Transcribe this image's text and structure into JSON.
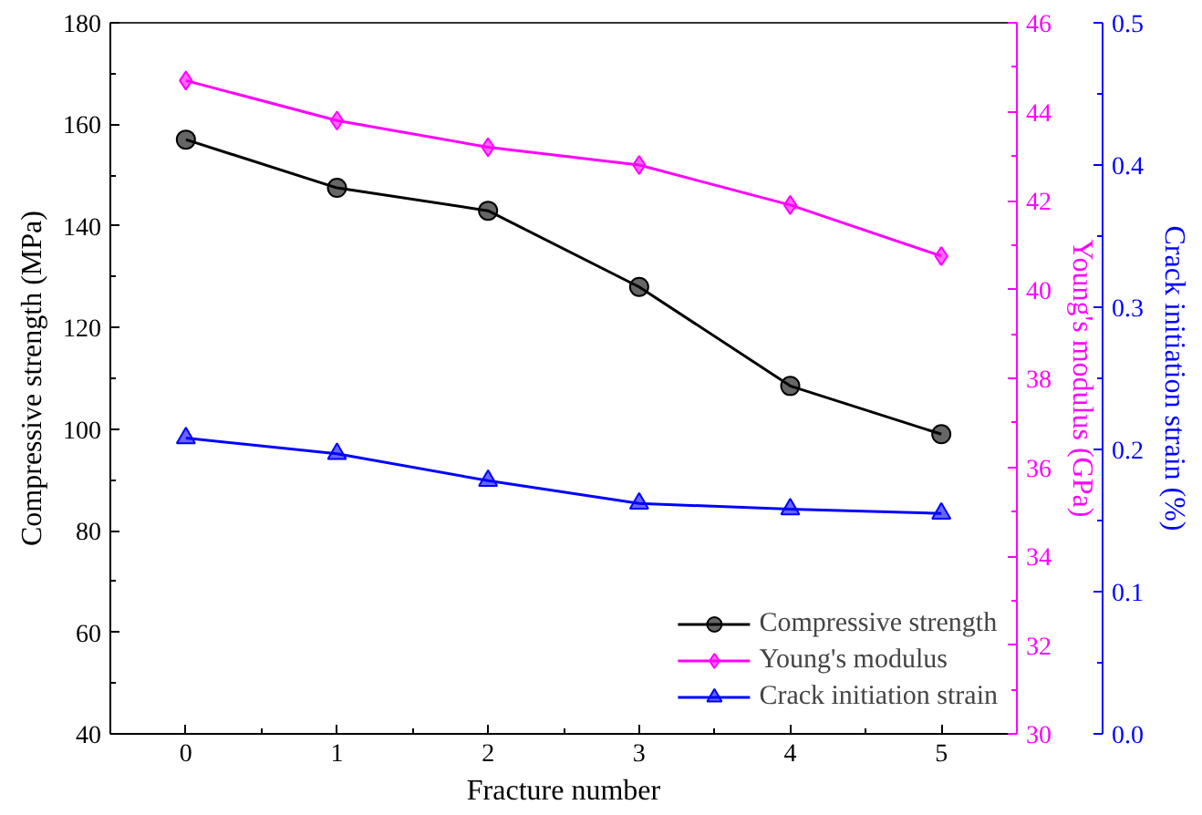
{
  "chart_data": {
    "type": "line",
    "xlabel": "Fracture number",
    "ylabel": "Compressive strength (MPa)",
    "y2label": "Young's modulus (GPa)",
    "y3label": "Crack initiation strain (%)",
    "x": [
      0,
      1,
      2,
      3,
      4,
      5
    ],
    "xlim": [
      -0.5,
      5.5
    ],
    "xticks": [
      0,
      1,
      2,
      3,
      4,
      5
    ],
    "ylim": [
      40,
      180
    ],
    "yticks": [
      40,
      60,
      80,
      100,
      120,
      140,
      160,
      180
    ],
    "y2lim": [
      30,
      46
    ],
    "y2ticks": [
      30,
      32,
      34,
      36,
      38,
      40,
      42,
      44,
      46
    ],
    "y3lim": [
      0.0,
      0.5
    ],
    "y3ticks": [
      {
        "value": 0,
        "label": "0.0"
      },
      0.1,
      0.2,
      0.3,
      0.4,
      0.5
    ],
    "grid": false,
    "legend": "bottom right",
    "line_style": "solid",
    "series": [
      {
        "name": "Compressive strength",
        "color": "#000000",
        "marker": "circle",
        "values": [
          157,
          147.5,
          143,
          128,
          108.5,
          99
        ]
      },
      {
        "name": "Young's modulus",
        "color": "#ff00ff",
        "marker": "diamond",
        "axis": "y2",
        "values": [
          44.7,
          43.8,
          43.2,
          42.8,
          41.9,
          40.75
        ]
      },
      {
        "name": "Crack initiation strain",
        "color": "#0000ff",
        "marker": "triangle",
        "axis": "y3",
        "values": [
          0.208,
          0.197,
          0.178,
          0.162,
          0.158,
          0.155
        ]
      }
    ]
  }
}
